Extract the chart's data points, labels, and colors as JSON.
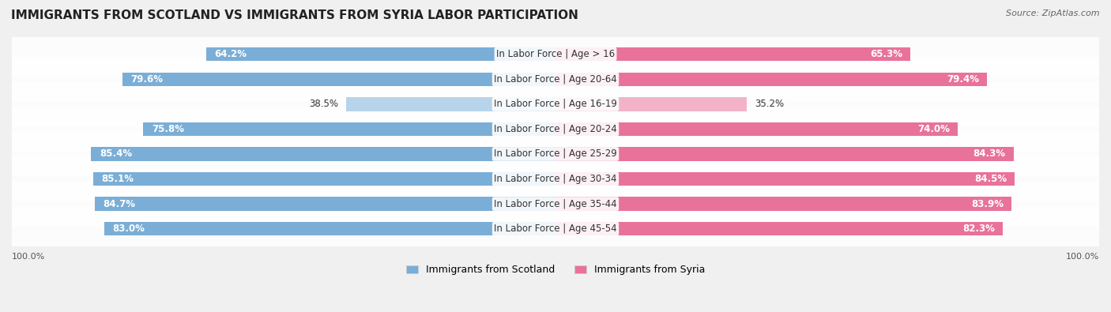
{
  "title": "IMMIGRANTS FROM SCOTLAND VS IMMIGRANTS FROM SYRIA LABOR PARTICIPATION",
  "source": "Source: ZipAtlas.com",
  "categories": [
    "In Labor Force | Age > 16",
    "In Labor Force | Age 20-64",
    "In Labor Force | Age 16-19",
    "In Labor Force | Age 20-24",
    "In Labor Force | Age 25-29",
    "In Labor Force | Age 30-34",
    "In Labor Force | Age 35-44",
    "In Labor Force | Age 45-54"
  ],
  "scotland_values": [
    64.2,
    79.6,
    38.5,
    75.8,
    85.4,
    85.1,
    84.7,
    83.0
  ],
  "syria_values": [
    65.3,
    79.4,
    35.2,
    74.0,
    84.3,
    84.5,
    83.9,
    82.3
  ],
  "scotland_color": "#7aaed6",
  "scotland_color_light": "#b8d4ea",
  "syria_color": "#e8729a",
  "syria_color_light": "#f2b3c8",
  "bar_height": 0.55,
  "background_color": "#f0f0f0",
  "row_bg_color": "#f5f5f5",
  "label_fontsize": 8.5,
  "title_fontsize": 11,
  "legend_fontsize": 9,
  "max_value": 100.0
}
